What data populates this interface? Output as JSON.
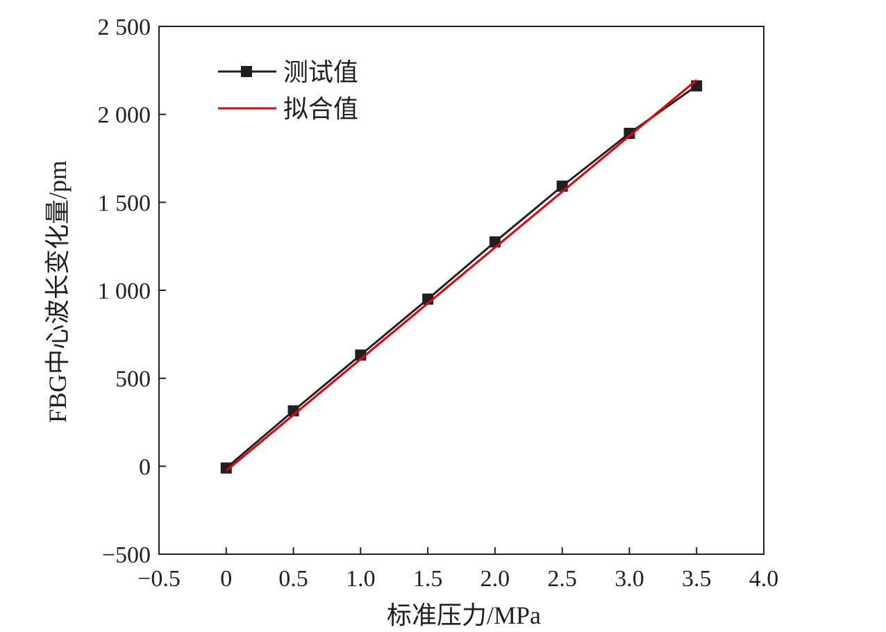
{
  "chart_data": {
    "type": "line",
    "xlabel": "标准压力/MPa",
    "ylabel": "FBG中心波长变化量/pm",
    "xlim": [
      -0.5,
      4.0
    ],
    "ylim": [
      -500,
      2500
    ],
    "x_ticks": [
      -0.5,
      0,
      0.5,
      1.0,
      1.5,
      2.0,
      2.5,
      3.0,
      3.5,
      4.0
    ],
    "x_tick_labels": [
      "−0.5",
      "0",
      "0.5",
      "1.0",
      "1.5",
      "2.0",
      "2.5",
      "3.0",
      "3.5",
      "4.0"
    ],
    "y_ticks": [
      -500,
      0,
      500,
      1000,
      1500,
      2000,
      2500
    ],
    "y_tick_labels": [
      "−500",
      "0",
      "500",
      "1 000",
      "1 500",
      "2 000",
      "2 500"
    ],
    "grid": false,
    "legend_position": "top-left",
    "series": [
      {
        "name": "测试值",
        "color": "#231f20",
        "marker": "square",
        "x": [
          0,
          0.5,
          1.0,
          1.5,
          2.0,
          2.5,
          3.0,
          3.5
        ],
        "y": [
          -10,
          315,
          632,
          950,
          1275,
          1592,
          1892,
          2162
        ]
      },
      {
        "name": "拟合值",
        "color": "#e3000f",
        "marker": "none",
        "x": [
          0,
          3.5
        ],
        "y": [
          -25,
          2195
        ]
      }
    ]
  }
}
